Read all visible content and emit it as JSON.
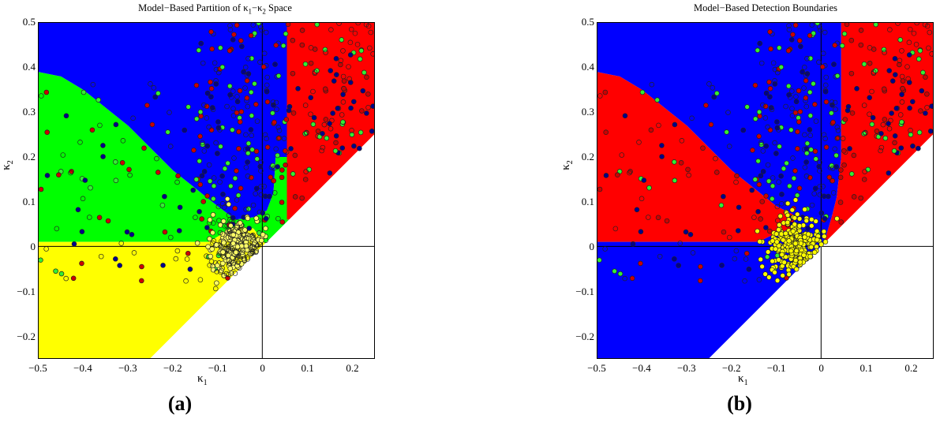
{
  "figure": {
    "panels": [
      {
        "id": "a",
        "title_pre": "Model−Based Partition of ",
        "title_k1": "κ",
        "title_sub1": "1",
        "title_mid": "−",
        "title_k2": "κ",
        "title_sub2": "2",
        "title_post": " Space",
        "letter": "(a)"
      },
      {
        "id": "b",
        "title_full": "Model−Based Detection Boundaries",
        "letter": "(b)"
      }
    ],
    "xlabel_symbol": "κ",
    "xlabel_sub": "1",
    "ylabel_symbol": "κ",
    "ylabel_sub": "2",
    "xticks": [
      "−0.5",
      "−0.4",
      "−0.3",
      "−0.2",
      "−0.1",
      "0",
      "0.1",
      "0.2"
    ],
    "yticks": [
      "0.5",
      "0.4",
      "0.3",
      "0.2",
      "0.1",
      "0",
      "−0.1",
      "−0.2"
    ]
  },
  "chart_data": [
    {
      "type": "scatter",
      "title": "Model-Based Partition of κ1–κ2 Space",
      "xlabel": "κ1",
      "ylabel": "κ2",
      "xlim": [
        -0.5,
        0.25
      ],
      "ylim": [
        -0.25,
        0.5
      ],
      "xticks": [
        -0.5,
        -0.4,
        -0.3,
        -0.2,
        -0.1,
        0,
        0.1,
        0.2
      ],
      "yticks": [
        -0.2,
        -0.1,
        0,
        0.1,
        0.2,
        0.3,
        0.4,
        0.5
      ],
      "grid": false,
      "reference_lines": {
        "x": 0,
        "y": 0
      },
      "regions": [
        {
          "name": "blue region",
          "color": "#0000ff",
          "polygon": [
            [
              -0.5,
              0.5
            ],
            [
              0.055,
              0.5
            ],
            [
              0.055,
              0.2
            ],
            [
              0.03,
              0.2
            ],
            [
              0.025,
              0.12
            ],
            [
              0.01,
              0.08
            ],
            [
              -0.02,
              0.065
            ],
            [
              -0.06,
              0.06
            ],
            [
              -0.1,
              0.09
            ],
            [
              -0.15,
              0.13
            ],
            [
              -0.2,
              0.17
            ],
            [
              -0.3,
              0.27
            ],
            [
              -0.4,
              0.35
            ],
            [
              -0.45,
              0.38
            ],
            [
              -0.5,
              0.39
            ]
          ]
        },
        {
          "name": "red region",
          "color": "#ff0000",
          "polygon": [
            [
              0.055,
              0.5
            ],
            [
              0.25,
              0.5
            ],
            [
              0.25,
              0.25
            ],
            [
              0.07,
              0.06
            ],
            [
              0.055,
              0.06
            ]
          ]
        },
        {
          "name": "green region",
          "color": "#00ff00",
          "polygon": [
            [
              -0.5,
              0.39
            ],
            [
              -0.45,
              0.38
            ],
            [
              -0.4,
              0.35
            ],
            [
              -0.3,
              0.27
            ],
            [
              -0.2,
              0.17
            ],
            [
              -0.15,
              0.13
            ],
            [
              -0.1,
              0.09
            ],
            [
              -0.06,
              0.06
            ],
            [
              -0.02,
              0.065
            ],
            [
              0.01,
              0.08
            ],
            [
              0.025,
              0.12
            ],
            [
              0.03,
              0.2
            ],
            [
              0.055,
              0.2
            ],
            [
              0.055,
              0.06
            ],
            [
              0.07,
              0.06
            ],
            [
              0.008,
              0.005
            ],
            [
              -0.02,
              0.04
            ],
            [
              -0.06,
              0.045
            ],
            [
              -0.12,
              0.01
            ],
            [
              -0.5,
              0.01
            ]
          ]
        },
        {
          "name": "yellow region",
          "color": "#ffff00",
          "polygon": [
            [
              -0.5,
              0.01
            ],
            [
              -0.12,
              0.01
            ],
            [
              -0.06,
              0.045
            ],
            [
              -0.02,
              0.04
            ],
            [
              0.008,
              0.005
            ],
            [
              0.0,
              0.0
            ],
            [
              -0.25,
              -0.25
            ],
            [
              -0.5,
              -0.25
            ]
          ]
        },
        {
          "name": "white (excluded) region",
          "color": "#ffffff",
          "polygon": [
            [
              0.25,
              0.25
            ],
            [
              0.25,
              -0.25
            ],
            [
              -0.25,
              -0.25
            ]
          ]
        }
      ],
      "series": [
        {
          "name": "yellow-class samples",
          "marker_color": "#ffff00",
          "cluster_center": [
            -0.05,
            0.0
          ],
          "count_approx": 300
        },
        {
          "name": "blue-class samples",
          "marker_color": "#00008b",
          "count_approx": 120
        },
        {
          "name": "red-class samples",
          "marker_color": "#cc0000",
          "count_approx": 110
        },
        {
          "name": "green-class samples",
          "marker_color": "#33ee33",
          "count_approx": 130
        },
        {
          "name": "open-marker samples",
          "marker_color": "none",
          "count_approx": 200
        }
      ]
    },
    {
      "type": "scatter",
      "title": "Model-Based Detection Boundaries",
      "xlabel": "κ1",
      "ylabel": "κ2",
      "xlim": [
        -0.5,
        0.25
      ],
      "ylim": [
        -0.25,
        0.5
      ],
      "xticks": [
        -0.5,
        -0.4,
        -0.3,
        -0.2,
        -0.1,
        0,
        0.1,
        0.2
      ],
      "yticks": [
        -0.2,
        -0.1,
        0,
        0.1,
        0.2,
        0.3,
        0.4,
        0.5
      ],
      "grid": false,
      "reference_lines": {
        "x": 0,
        "y": 0
      },
      "regions": [
        {
          "name": "blue upper region",
          "color": "#0000ff",
          "polygon": [
            [
              -0.5,
              0.5
            ],
            [
              0.045,
              0.5
            ],
            [
              0.045,
              0.2
            ],
            [
              0.035,
              0.11
            ],
            [
              0.025,
              0.07
            ],
            [
              0.01,
              0.06
            ],
            [
              -0.02,
              0.065
            ],
            [
              -0.06,
              0.07
            ],
            [
              -0.1,
              0.09
            ],
            [
              -0.15,
              0.13
            ],
            [
              -0.2,
              0.17
            ],
            [
              -0.3,
              0.27
            ],
            [
              -0.4,
              0.35
            ],
            [
              -0.45,
              0.38
            ],
            [
              -0.5,
              0.39
            ]
          ]
        },
        {
          "name": "red right region",
          "color": "#ff0000",
          "polygon": [
            [
              0.045,
              0.5
            ],
            [
              0.25,
              0.5
            ],
            [
              0.25,
              0.25
            ],
            [
              0.0,
              0.0
            ],
            [
              0.01,
              0.02
            ],
            [
              0.025,
              0.07
            ],
            [
              0.035,
              0.11
            ],
            [
              0.045,
              0.2
            ]
          ]
        },
        {
          "name": "red left region",
          "color": "#ff0000",
          "polygon": [
            [
              -0.5,
              0.39
            ],
            [
              -0.45,
              0.38
            ],
            [
              -0.4,
              0.35
            ],
            [
              -0.3,
              0.27
            ],
            [
              -0.2,
              0.17
            ],
            [
              -0.15,
              0.13
            ],
            [
              -0.1,
              0.09
            ],
            [
              -0.06,
              0.07
            ],
            [
              -0.06,
              0.04
            ],
            [
              -0.1,
              0.03
            ],
            [
              -0.14,
              0.01
            ],
            [
              -0.5,
              0.01
            ]
          ]
        },
        {
          "name": "blue lower region",
          "color": "#0000ff",
          "polygon": [
            [
              -0.5,
              0.01
            ],
            [
              -0.14,
              0.01
            ],
            [
              -0.1,
              0.03
            ],
            [
              -0.06,
              0.04
            ],
            [
              -0.06,
              0.07
            ],
            [
              -0.02,
              0.065
            ],
            [
              0.01,
              0.06
            ],
            [
              0.025,
              0.07
            ],
            [
              0.01,
              0.02
            ],
            [
              0.0,
              0.0
            ],
            [
              -0.25,
              -0.25
            ],
            [
              -0.5,
              -0.25
            ]
          ]
        },
        {
          "name": "white (excluded) region",
          "color": "#ffffff",
          "polygon": [
            [
              0.25,
              0.25
            ],
            [
              0.25,
              -0.25
            ],
            [
              -0.25,
              -0.25
            ]
          ]
        }
      ],
      "series": [
        {
          "name": "yellow-class samples",
          "marker_color": "#ffff00",
          "cluster_center": [
            -0.05,
            0.0
          ],
          "count_approx": 300
        },
        {
          "name": "blue-class samples",
          "marker_color": "#00008b",
          "count_approx": 120
        },
        {
          "name": "red-class samples",
          "marker_color": "#cc0000",
          "count_approx": 110
        },
        {
          "name": "green-class samples",
          "marker_color": "#33ee33",
          "count_approx": 130
        },
        {
          "name": "open-marker samples",
          "marker_color": "none",
          "count_approx": 200
        }
      ]
    }
  ]
}
